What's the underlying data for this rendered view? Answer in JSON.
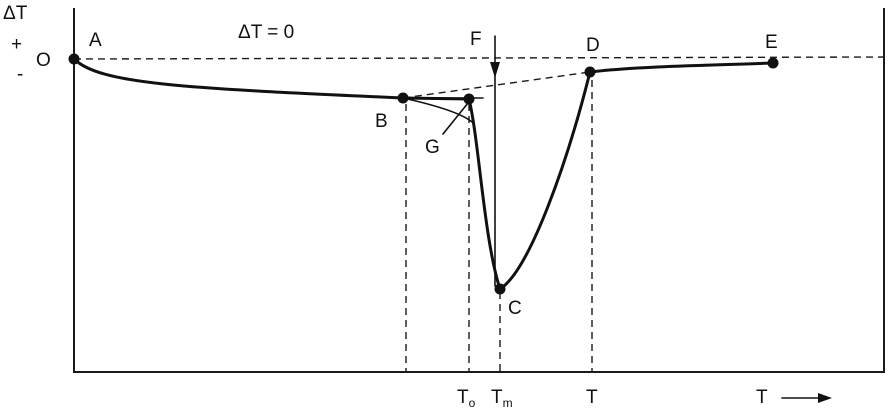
{
  "axes": {
    "y_label": "ΔT",
    "plus": "+",
    "minus": "-",
    "origin": "O",
    "x_label": "T"
  },
  "baseline_label": "ΔT = 0",
  "points": {
    "A": "A",
    "B": "B",
    "C": "C",
    "D": "D",
    "E": "E",
    "F": "F",
    "G": "G"
  },
  "temperature_marks": {
    "onset": {
      "base": "T",
      "sub": "o"
    },
    "melting": {
      "base": "T",
      "sub": "m"
    },
    "end": "T"
  }
}
